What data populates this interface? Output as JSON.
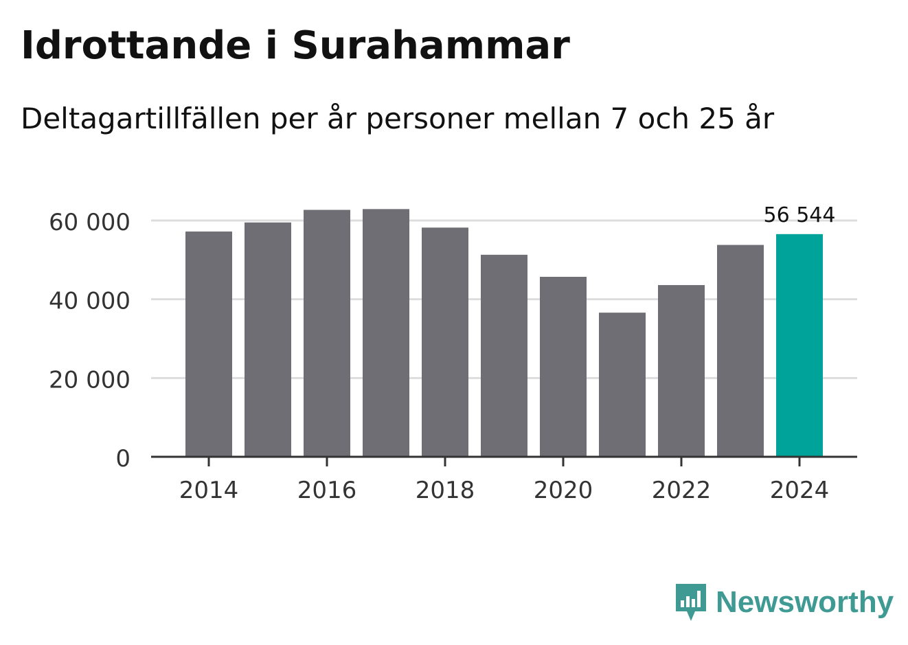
{
  "title": "Idrottande i Surahammar",
  "subtitle": "Deltagartillfällen per år personer mellan 7 och 25 år",
  "brand": {
    "name": "Newsworthy",
    "color": "#3f9a93"
  },
  "colors": {
    "bar": "#6f6e74",
    "highlight": "#00a39a",
    "grid": "#dddddd",
    "axis": "#333333",
    "tick_text": "#333333"
  },
  "chart_data": {
    "type": "bar",
    "title": "Idrottande i Surahammar",
    "subtitle": "Deltagartillfällen per år personer mellan 7 och 25 år",
    "categories": [
      "2014",
      "2015",
      "2016",
      "2017",
      "2018",
      "2019",
      "2020",
      "2021",
      "2022",
      "2023",
      "2024"
    ],
    "values": [
      57200,
      59500,
      62700,
      62900,
      58200,
      51300,
      45700,
      36600,
      43600,
      53800,
      56544
    ],
    "highlight_index": 10,
    "highlight_label": "56 544",
    "ylim": [
      0,
      70000
    ],
    "yticks": [
      0,
      20000,
      40000,
      60000
    ],
    "ytick_labels": [
      "0",
      "20 000",
      "40 000",
      "60 000"
    ],
    "xtick_labels": [
      "2014",
      "2016",
      "2018",
      "2020",
      "2022",
      "2024"
    ],
    "xtick_categories": [
      "2014",
      "2016",
      "2018",
      "2020",
      "2022",
      "2024"
    ],
    "xlabel": "",
    "ylabel": "",
    "grid": true,
    "legend": "none"
  }
}
